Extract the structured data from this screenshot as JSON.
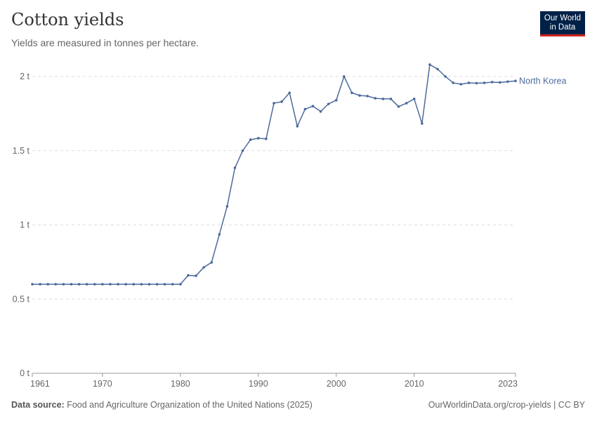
{
  "title": "Cotton yields",
  "subtitle": "Yields are measured in tonnes per hectare.",
  "logo": {
    "line1": "Our World",
    "line2": "in Data"
  },
  "footer": {
    "source_label": "Data source:",
    "source": "Food and Agriculture Organization of the United Nations (2025)",
    "url": "OurWorldinData.org/crop-yields | CC BY"
  },
  "chart_data": {
    "type": "line",
    "title": "Cotton yields",
    "xlim": [
      1961,
      2023
    ],
    "ylim": [
      0,
      2.1
    ],
    "x_ticks": [
      1961,
      1970,
      1980,
      1990,
      2000,
      2010,
      2023
    ],
    "y_ticks": [
      {
        "value": 0,
        "label": "0 t"
      },
      {
        "value": 0.5,
        "label": "0.5 t"
      },
      {
        "value": 1,
        "label": "1 t"
      },
      {
        "value": 1.5,
        "label": "1.5 t"
      },
      {
        "value": 2,
        "label": "2 t"
      }
    ],
    "grid": "horizontal dashed",
    "color": "#4c6a9c",
    "series": [
      {
        "name": "North Korea",
        "x": [
          1961,
          1962,
          1963,
          1964,
          1965,
          1966,
          1967,
          1968,
          1969,
          1970,
          1971,
          1972,
          1973,
          1974,
          1975,
          1976,
          1977,
          1978,
          1979,
          1980,
          1981,
          1982,
          1983,
          1984,
          1985,
          1986,
          1987,
          1988,
          1989,
          1990,
          1991,
          1992,
          1993,
          1994,
          1995,
          1996,
          1997,
          1998,
          1999,
          2000,
          2001,
          2002,
          2003,
          2004,
          2005,
          2006,
          2007,
          2008,
          2009,
          2010,
          2011,
          2012,
          2013,
          2014,
          2015,
          2016,
          2017,
          2018,
          2019,
          2020,
          2021,
          2022,
          2023
        ],
        "values": [
          0.6,
          0.6,
          0.6,
          0.6,
          0.6,
          0.6,
          0.6,
          0.6,
          0.6,
          0.6,
          0.6,
          0.6,
          0.6,
          0.6,
          0.6,
          0.6,
          0.6,
          0.6,
          0.6,
          0.6,
          0.66,
          0.657,
          0.714,
          0.747,
          0.936,
          1.125,
          1.385,
          1.5,
          1.574,
          1.584,
          1.58,
          1.82,
          1.83,
          1.89,
          1.665,
          1.78,
          1.8,
          1.764,
          1.815,
          1.84,
          2.0,
          1.89,
          1.872,
          1.868,
          1.853,
          1.849,
          1.849,
          1.797,
          1.82,
          1.849,
          1.683,
          2.08,
          2.05,
          2.0,
          1.957,
          1.948,
          1.957,
          1.955,
          1.957,
          1.962,
          1.96,
          1.965,
          1.97
        ]
      }
    ]
  }
}
